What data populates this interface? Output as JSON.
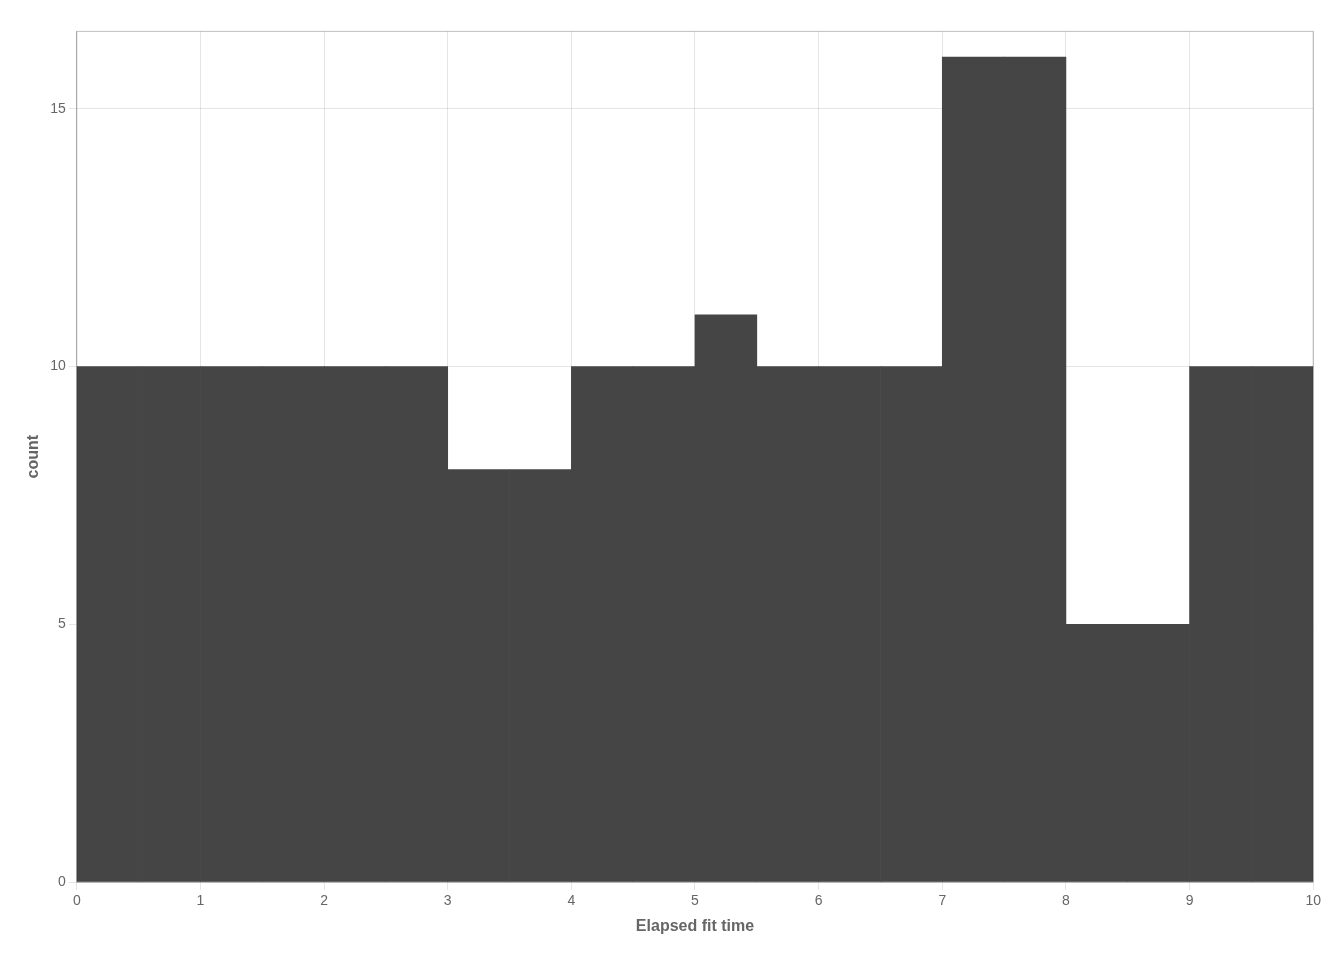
{
  "chart_data": {
    "type": "histogram",
    "bins": [
      0.0,
      0.5,
      1.0,
      1.5,
      2.0,
      2.5,
      3.0,
      3.5,
      4.0,
      4.5,
      5.0,
      5.5,
      6.0,
      6.5,
      7.0,
      7.5,
      8.0,
      8.5,
      9.0,
      9.5,
      10.0
    ],
    "values": [
      10,
      10,
      10,
      10,
      10,
      10,
      8,
      8,
      10,
      10,
      11,
      10,
      10,
      10,
      16,
      16,
      5,
      5,
      10,
      10
    ],
    "color": "#454545",
    "xlabel": "Elapsed fit time",
    "ylabel": "count",
    "xlim": [
      0,
      10
    ],
    "ylim": [
      0,
      16.5
    ],
    "xticks": [
      0,
      1,
      2,
      3,
      4,
      5,
      6,
      7,
      8,
      9,
      10
    ],
    "yticks": [
      0,
      5,
      10,
      15
    ],
    "grid": true
  }
}
